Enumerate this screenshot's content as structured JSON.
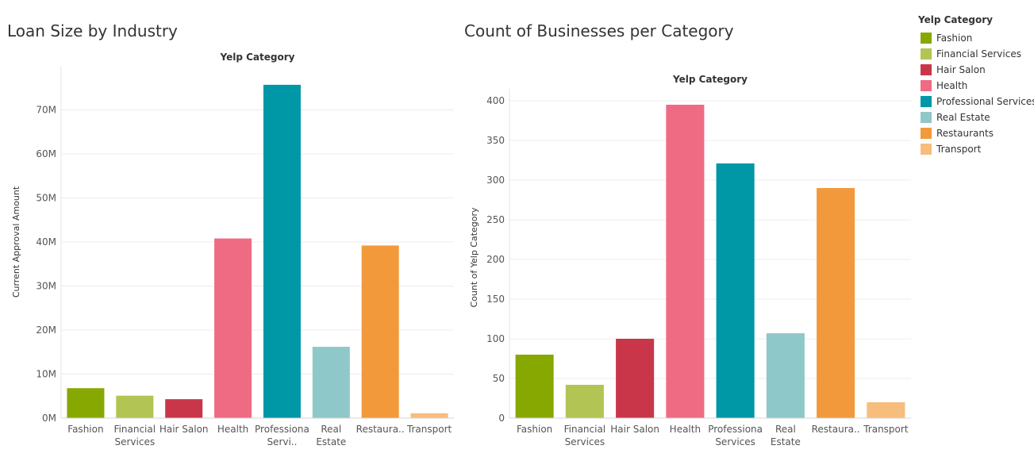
{
  "chart_data": [
    {
      "type": "bar",
      "title": "Loan Size by Industry",
      "header": "Yelp Category",
      "ylabel": "Current Approval Amount",
      "categories": [
        "Fashion",
        "Financial Services",
        "Hair Salon",
        "Health",
        "Professional Services",
        "Real Estate",
        "Restaurants",
        "Transport"
      ],
      "tick_labels": [
        [
          "Fashion"
        ],
        [
          "Financial",
          "Services"
        ],
        [
          "Hair Salon"
        ],
        [
          "Health"
        ],
        [
          "Professiona",
          "Servi.."
        ],
        [
          "Real",
          "Estate"
        ],
        [
          "Restaura.."
        ],
        [
          "Transport"
        ]
      ],
      "values": [
        6800000,
        5100000,
        4300000,
        40800000,
        75700000,
        16200000,
        39200000,
        1100000
      ],
      "ylim": [
        0,
        80000000
      ],
      "yticks": [
        0,
        10000000,
        20000000,
        30000000,
        40000000,
        50000000,
        60000000,
        70000000
      ],
      "ytick_labels": [
        "0M",
        "10M",
        "20M",
        "30M",
        "40M",
        "50M",
        "60M",
        "70M"
      ],
      "grid": true
    },
    {
      "type": "bar",
      "title": "Count of Businesses per Category",
      "header": "Yelp Category",
      "ylabel": "Count of Yelp Category",
      "categories": [
        "Fashion",
        "Financial Services",
        "Hair Salon",
        "Health",
        "Professional Services",
        "Real Estate",
        "Restaurants",
        "Transport"
      ],
      "tick_labels": [
        [
          "Fashion"
        ],
        [
          "Financial",
          "Services"
        ],
        [
          "Hair Salon"
        ],
        [
          "Health"
        ],
        [
          "Professiona",
          "Services"
        ],
        [
          "Real",
          "Estate"
        ],
        [
          "Restaura.."
        ],
        [
          "Transport"
        ]
      ],
      "values": [
        80,
        42,
        100,
        395,
        321,
        107,
        290,
        20
      ],
      "ylim": [
        0,
        405
      ],
      "yticks": [
        0,
        50,
        100,
        150,
        200,
        250,
        300,
        350,
        400
      ],
      "ytick_labels": [
        "0",
        "50",
        "100",
        "150",
        "200",
        "250",
        "300",
        "350",
        "400"
      ],
      "grid": true
    }
  ],
  "legend": {
    "title": "Yelp Category",
    "placement": "right",
    "items": [
      {
        "label": "Fashion",
        "color": "#86a800"
      },
      {
        "label": "Financial Services",
        "color": "#b2c453"
      },
      {
        "label": "Hair Salon",
        "color": "#c9364a"
      },
      {
        "label": "Health",
        "color": "#ef6b83"
      },
      {
        "label": "Professional Services",
        "color": "#0097a7"
      },
      {
        "label": "Real Estate",
        "color": "#8fc8c9"
      },
      {
        "label": "Restaurants",
        "color": "#f29a3b"
      },
      {
        "label": "Transport",
        "color": "#f7bd7c"
      }
    ]
  }
}
